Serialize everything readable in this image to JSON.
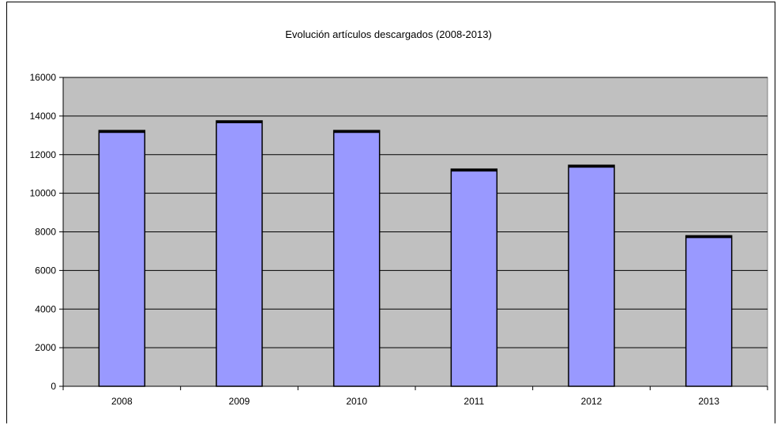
{
  "chart_data": {
    "type": "bar",
    "title": "Evolución artículos descargados (2008-2013)",
    "xlabel": "",
    "ylabel": "",
    "categories": [
      "2008",
      "2009",
      "2010",
      "2011",
      "2012",
      "2013"
    ],
    "values": [
      13250,
      13750,
      13250,
      11250,
      11450,
      7800
    ],
    "ylim": [
      0,
      16000
    ],
    "yticks": [
      0,
      2000,
      4000,
      6000,
      8000,
      10000,
      12000,
      14000,
      16000
    ],
    "grid": true,
    "legend": "none",
    "colors": {
      "bar_fill": "#9999ff",
      "bar_edge": "#000000",
      "plot_background": "#c0c0c0",
      "gridline": "#000000"
    }
  }
}
